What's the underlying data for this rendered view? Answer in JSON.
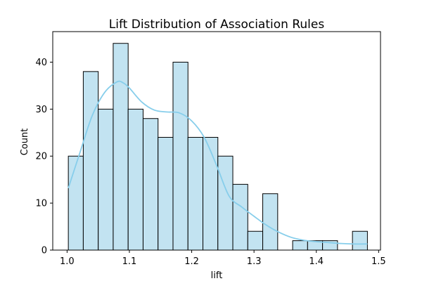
{
  "chart_data": {
    "type": "bar",
    "title": "Lift Distribution of Association Rules",
    "xlabel": "lift",
    "ylabel": "Count",
    "xlim": [
      0.977,
      1.503
    ],
    "ylim": [
      0,
      46.5
    ],
    "xticks": [
      1.0,
      1.1,
      1.2,
      1.3,
      1.4,
      1.5
    ],
    "xtick_labels": [
      "1.0",
      "1.1",
      "1.2",
      "1.3",
      "1.4",
      "1.5"
    ],
    "yticks": [
      0,
      10,
      20,
      30,
      40
    ],
    "ytick_labels": [
      "0",
      "10",
      "20",
      "30",
      "40"
    ],
    "bins": [
      {
        "x0": 1.002,
        "x1": 1.026,
        "count": 20
      },
      {
        "x0": 1.026,
        "x1": 1.05,
        "count": 38
      },
      {
        "x0": 1.05,
        "x1": 1.074,
        "count": 30
      },
      {
        "x0": 1.074,
        "x1": 1.098,
        "count": 44
      },
      {
        "x0": 1.098,
        "x1": 1.122,
        "count": 30
      },
      {
        "x0": 1.122,
        "x1": 1.146,
        "count": 28
      },
      {
        "x0": 1.146,
        "x1": 1.17,
        "count": 24
      },
      {
        "x0": 1.17,
        "x1": 1.194,
        "count": 40
      },
      {
        "x0": 1.194,
        "x1": 1.218,
        "count": 24
      },
      {
        "x0": 1.218,
        "x1": 1.242,
        "count": 24
      },
      {
        "x0": 1.242,
        "x1": 1.266,
        "count": 20
      },
      {
        "x0": 1.266,
        "x1": 1.29,
        "count": 14
      },
      {
        "x0": 1.29,
        "x1": 1.314,
        "count": 4
      },
      {
        "x0": 1.314,
        "x1": 1.338,
        "count": 12
      },
      {
        "x0": 1.338,
        "x1": 1.362,
        "count": 0
      },
      {
        "x0": 1.362,
        "x1": 1.386,
        "count": 2
      },
      {
        "x0": 1.386,
        "x1": 1.41,
        "count": 2
      },
      {
        "x0": 1.41,
        "x1": 1.434,
        "count": 2
      },
      {
        "x0": 1.434,
        "x1": 1.458,
        "count": 0
      },
      {
        "x0": 1.458,
        "x1": 1.482,
        "count": 4
      }
    ],
    "kde": {
      "x": [
        1.002,
        1.02,
        1.04,
        1.06,
        1.08,
        1.09,
        1.1,
        1.12,
        1.14,
        1.16,
        1.18,
        1.2,
        1.22,
        1.24,
        1.26,
        1.28,
        1.3,
        1.32,
        1.34,
        1.36,
        1.38,
        1.4,
        1.42,
        1.44,
        1.46,
        1.482
      ],
      "y": [
        13.2,
        20.5,
        28.5,
        33.5,
        35.8,
        35.6,
        34.5,
        31.5,
        29.8,
        29.4,
        29.2,
        27.5,
        24.0,
        18.0,
        11.5,
        9.2,
        7.2,
        5.3,
        3.8,
        2.7,
        2.1,
        1.8,
        1.6,
        1.4,
        1.3,
        1.3
      ]
    },
    "bar_color": "#c2e3f1",
    "bar_edge_color": "#000000",
    "kde_color": "#87ceeb",
    "grid": false,
    "legend": "none"
  }
}
